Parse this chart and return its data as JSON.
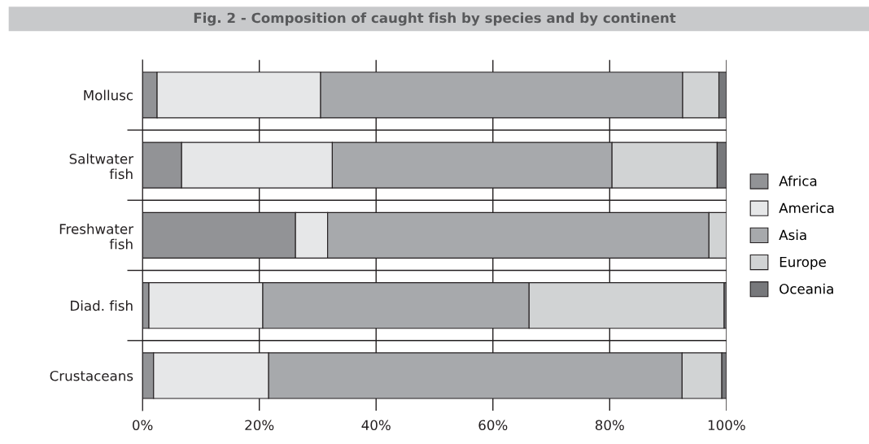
{
  "chart_data": {
    "type": "bar",
    "orientation": "horizontal",
    "stacked": true,
    "title": "Fig. 2 - Composition of caught fish by species and by continent",
    "categories": [
      "Mollusc",
      "Saltwater\nfish",
      "Freshwater\nfish",
      "Diad. fish",
      "Crustaceans"
    ],
    "series": [
      {
        "name": "Africa",
        "color": "#929396",
        "values": [
          2.5,
          6.7,
          26.2,
          1.1,
          1.9
        ]
      },
      {
        "name": "America",
        "color": "#e6e7e8",
        "values": [
          28,
          25.8,
          5.5,
          19.5,
          19.7
        ]
      },
      {
        "name": "Asia",
        "color": "#a7a9ac",
        "values": [
          62,
          47.9,
          65.3,
          45.6,
          70.8
        ]
      },
      {
        "name": "Europe",
        "color": "#d1d3d4",
        "values": [
          6.2,
          18,
          3,
          33.4,
          6.8
        ]
      },
      {
        "name": "Oceania",
        "color": "#77787b",
        "values": [
          1.3,
          1.6,
          null,
          0.4,
          0.8
        ]
      }
    ],
    "xlim": [
      0,
      100
    ],
    "xticks": [
      {
        "value": 0,
        "label": "0%"
      },
      {
        "value": 20,
        "label": "20%"
      },
      {
        "value": 40,
        "label": "40%"
      },
      {
        "value": 60,
        "label": "60%"
      },
      {
        "value": 80,
        "label": "80%"
      },
      {
        "value": 100,
        "label": "100%"
      }
    ],
    "grid": true,
    "legend": "right"
  }
}
